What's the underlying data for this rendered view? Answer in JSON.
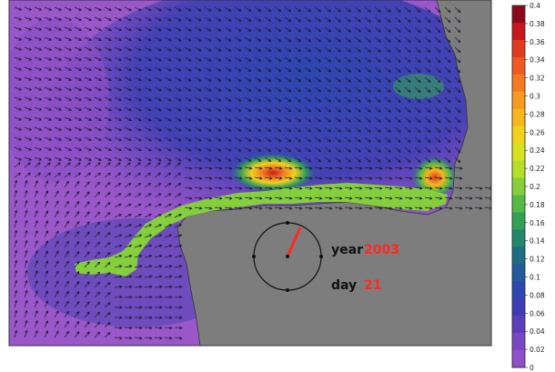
{
  "colorbar": {
    "ticks": [
      "0.4",
      "0.38",
      "0.36",
      "0.34",
      "0.32",
      "0.3",
      "0.28",
      "0.26",
      "0.24",
      "0.22",
      "0.2",
      "0.18",
      "0.16",
      "0.14",
      "0.12",
      "0.1",
      "0.08",
      "0.06",
      "0.04",
      "0.02",
      "0"
    ],
    "colors": [
      "#8b0a1a",
      "#c8161d",
      "#e23a1f",
      "#f05a22",
      "#f47b22",
      "#f89a1f",
      "#f6b61c",
      "#f0d11c",
      "#d9e21e",
      "#b4de28",
      "#86cf3c",
      "#55b948",
      "#33a157",
      "#23876a",
      "#1d6e82",
      "#24599b",
      "#2d46b0",
      "#3d3cb6",
      "#5a3fba",
      "#7a46c2",
      "#9150c8"
    ]
  },
  "clock": {
    "year_label": "year",
    "year_value": "2003",
    "day_label": "day",
    "day_value": "21"
  },
  "colors": {
    "land": "#7d7d7d",
    "deep_water": "#9a57c9",
    "mid_water": "#4b43b2",
    "plume": "#86cf3c",
    "accent_red": "#ff2a1a"
  }
}
